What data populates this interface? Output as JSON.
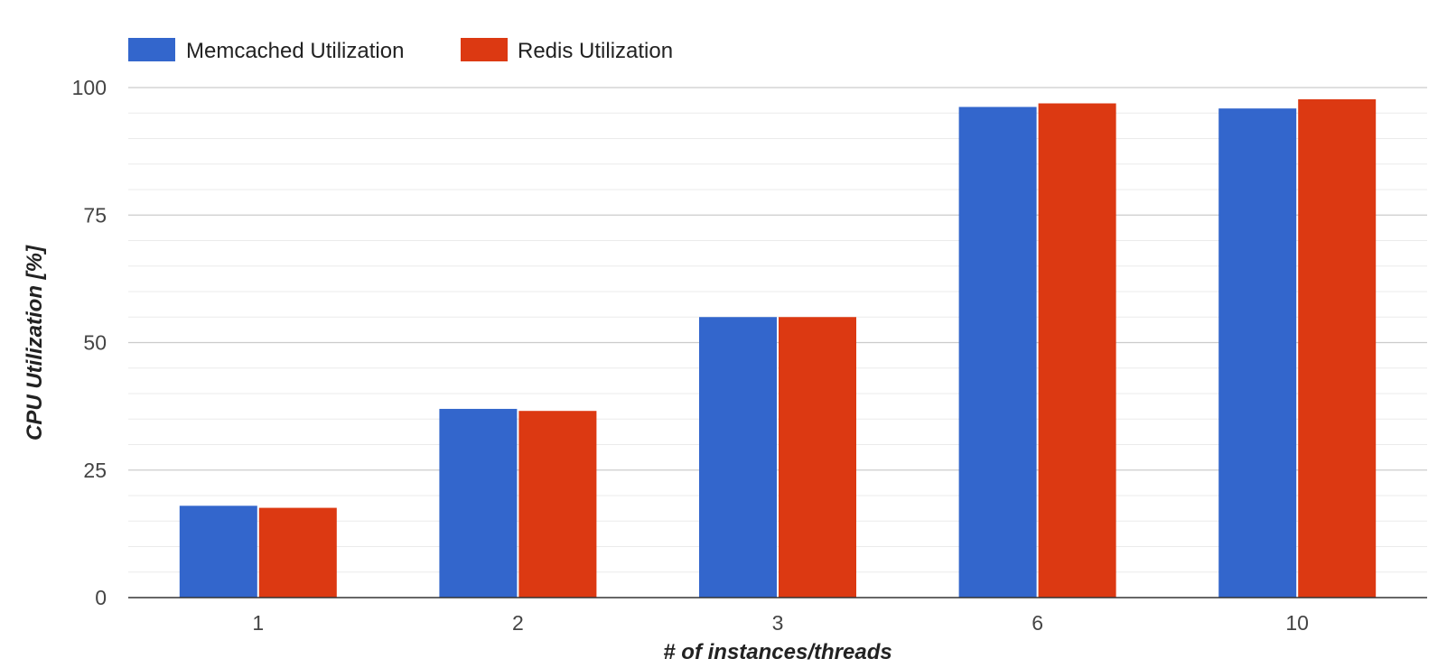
{
  "chart_data": {
    "type": "bar",
    "categories": [
      "1",
      "2",
      "3",
      "6",
      "10"
    ],
    "series": [
      {
        "name": "Memcached Utilization",
        "color": "#3366cc",
        "values": [
          18,
          37,
          55,
          96.2,
          95.9
        ]
      },
      {
        "name": "Redis Utilization",
        "color": "#dc3912",
        "values": [
          17.6,
          36.6,
          55,
          96.9,
          97.7
        ]
      }
    ],
    "xlabel": "# of instances/threads",
    "ylabel": "CPU Utilization [%]",
    "ylim": [
      0,
      100
    ],
    "yticks": [
      "0",
      "25",
      "50",
      "75",
      "100"
    ],
    "minor_grid_step": 5,
    "grid": true,
    "legend_position": "top-left"
  }
}
